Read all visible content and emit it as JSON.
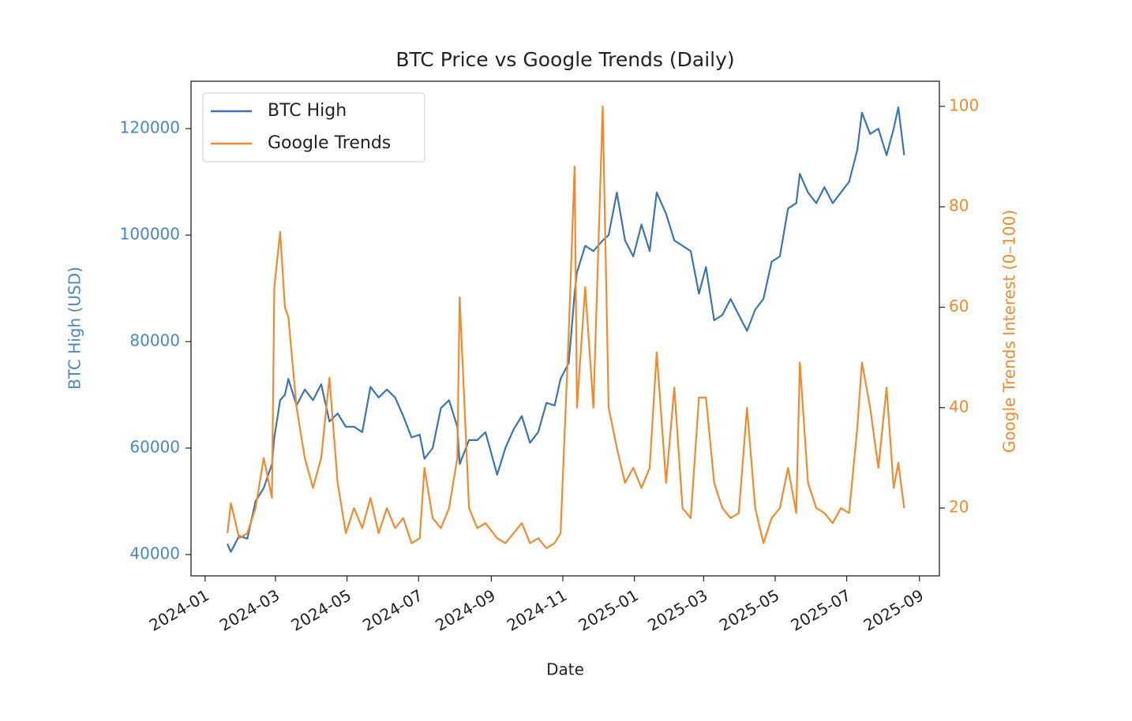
{
  "chart_data": {
    "type": "line",
    "title": "BTC Price vs Google Trends (Daily)",
    "x_label": "Date",
    "y_label": "BTC High (USD)",
    "y2_label": "Google Trends Interest (0–100)",
    "legend": "upper left",
    "xlim": [
      "2023-12-20",
      "2025-09-18"
    ],
    "xticks": [
      "2024-01",
      "2024-03",
      "2024-05",
      "2024-07",
      "2024-09",
      "2024-11",
      "2025-01",
      "2025-03",
      "2025-05",
      "2025-07",
      "2025-09"
    ],
    "ylim": [
      36000,
      128900
    ],
    "yticks": [
      40000,
      60000,
      80000,
      100000,
      120000
    ],
    "y2lim": [
      6.5,
      105
    ],
    "y2ticks": [
      20,
      40,
      60,
      80,
      100
    ],
    "x": [
      "2024-01-20",
      "2024-01-23",
      "2024-01-30",
      "2024-02-06",
      "2024-02-13",
      "2024-02-20",
      "2024-02-27",
      "2024-02-29",
      "2024-03-05",
      "2024-03-09",
      "2024-03-12",
      "2024-03-19",
      "2024-03-26",
      "2024-04-02",
      "2024-04-09",
      "2024-04-16",
      "2024-04-23",
      "2024-04-30",
      "2024-05-07",
      "2024-05-14",
      "2024-05-21",
      "2024-05-28",
      "2024-06-04",
      "2024-06-11",
      "2024-06-18",
      "2024-06-25",
      "2024-07-02",
      "2024-07-06",
      "2024-07-13",
      "2024-07-20",
      "2024-07-27",
      "2024-08-03",
      "2024-08-05",
      "2024-08-13",
      "2024-08-20",
      "2024-08-27",
      "2024-09-06",
      "2024-09-13",
      "2024-09-20",
      "2024-09-27",
      "2024-10-04",
      "2024-10-11",
      "2024-10-18",
      "2024-10-25",
      "2024-10-30",
      "2024-11-06",
      "2024-11-11",
      "2024-11-13",
      "2024-11-20",
      "2024-11-27",
      "2024-12-05",
      "2024-12-10",
      "2024-12-17",
      "2024-12-24",
      "2024-12-31",
      "2025-01-07",
      "2025-01-14",
      "2025-01-20",
      "2025-01-28",
      "2025-02-04",
      "2025-02-11",
      "2025-02-18",
      "2025-02-25",
      "2025-03-03",
      "2025-03-10",
      "2025-03-17",
      "2025-03-24",
      "2025-03-31",
      "2025-04-07",
      "2025-04-14",
      "2025-04-21",
      "2025-04-28",
      "2025-05-05",
      "2025-05-12",
      "2025-05-19",
      "2025-05-22",
      "2025-05-29",
      "2025-06-05",
      "2025-06-12",
      "2025-06-19",
      "2025-06-26",
      "2025-07-03",
      "2025-07-10",
      "2025-07-14",
      "2025-07-21",
      "2025-07-28",
      "2025-08-04",
      "2025-08-10",
      "2025-08-14",
      "2025-08-19"
    ],
    "series": [
      {
        "name": "BTC High",
        "color": "#3a75ae",
        "axis": "y",
        "values": [
          42000,
          40500,
          43500,
          43000,
          50000,
          52500,
          57000,
          62000,
          69000,
          70000,
          73000,
          68000,
          71000,
          69000,
          72000,
          65000,
          66500,
          64000,
          64000,
          63000,
          71500,
          69500,
          71000,
          69500,
          66000,
          62000,
          62500,
          58000,
          60000,
          67500,
          69000,
          64000,
          57000,
          61500,
          61500,
          63000,
          55000,
          60000,
          63500,
          66000,
          61000,
          63000,
          68500,
          68000,
          73000,
          76000,
          89000,
          93000,
          98000,
          97000,
          99000,
          100000,
          108000,
          99000,
          96000,
          102000,
          97000,
          108000,
          104000,
          99000,
          98000,
          97000,
          89000,
          94000,
          84000,
          85000,
          88000,
          85000,
          82000,
          86000,
          88000,
          95000,
          96000,
          105000,
          106000,
          111500,
          108000,
          106000,
          109000,
          106000,
          108000,
          110000,
          116000,
          123000,
          119000,
          120000,
          115000,
          120000,
          124000,
          115000
        ]
      },
      {
        "name": "Google Trends",
        "color": "#ef8a2f",
        "axis": "y2",
        "values": [
          15,
          21,
          14,
          15,
          20,
          30,
          22,
          64,
          75,
          60,
          58,
          40,
          30,
          24,
          30,
          46,
          25,
          15,
          20,
          16,
          22,
          15,
          20,
          16,
          18,
          13,
          14,
          28,
          18,
          16,
          20,
          30,
          62,
          20,
          16,
          17,
          14,
          13,
          15,
          17,
          13,
          14,
          12,
          13,
          15,
          55,
          88,
          40,
          64,
          40,
          100,
          40,
          32,
          25,
          28,
          24,
          28,
          51,
          25,
          44,
          20,
          18,
          42,
          42,
          25,
          20,
          18,
          19,
          40,
          20,
          13,
          18,
          20,
          28,
          19,
          49,
          25,
          20,
          19,
          17,
          20,
          19,
          36,
          49,
          40,
          28,
          44,
          24,
          29,
          20
        ]
      }
    ]
  }
}
